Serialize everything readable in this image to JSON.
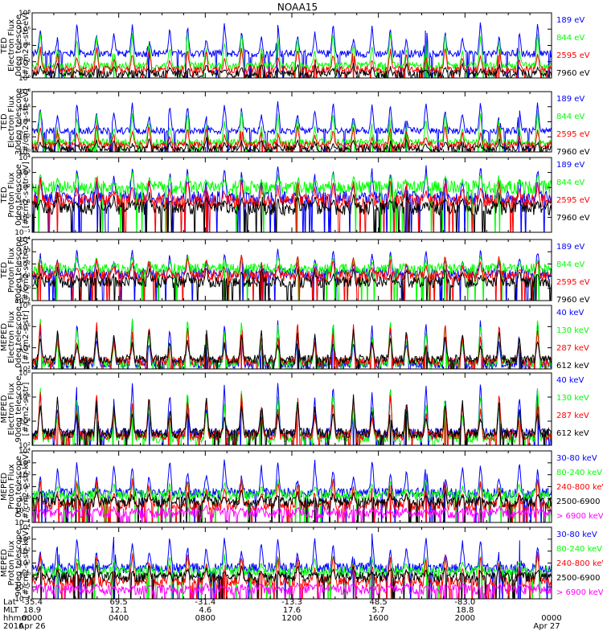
{
  "title": "NOAA15",
  "colors": {
    "black": "#000000",
    "red": "#ff0000",
    "green": "#00ff00",
    "blue": "#0000ff",
    "magenta": "#ff00ff"
  },
  "footer": {
    "row_labels": [
      "Lat",
      "MLT",
      "hhmm",
      "2016"
    ],
    "lat": [
      "-35.4",
      "69.5",
      "-31.4",
      "-13.3",
      "48.5",
      "-83.0"
    ],
    "mlt": [
      "18.9",
      "12.1",
      "4.6",
      "17.6",
      "5.7",
      "18.8"
    ],
    "hhmm": [
      "0000",
      "0400",
      "0800",
      "1200",
      "1600",
      "2000",
      "0000"
    ],
    "date_start": "Apr 26",
    "date_end": "Apr 27"
  },
  "chart_data": [
    {
      "type": "line",
      "ylabel": [
        "TED",
        "Electron Flux",
        "0deg telescope",
        "[#/cm2-s-str-eV]"
      ],
      "yticks": [
        "10⁸",
        "10⁶",
        "10⁴",
        "10²",
        "10⁰"
      ],
      "ylog": [
        0,
        8
      ],
      "x_hours": [
        0,
        24
      ],
      "series": [
        {
          "name": "7960 eV",
          "color": "#000000",
          "base": 0.5,
          "peak": 1.8
        },
        {
          "name": "2595 eV",
          "color": "#ff0000",
          "base": 1.0,
          "peak": 3.8
        },
        {
          "name": "844 eV",
          "color": "#00ff00",
          "base": 1.5,
          "peak": 5.8
        },
        {
          "name": "189 eV",
          "color": "#0000ff",
          "base": 3.0,
          "peak": 6.9
        }
      ]
    },
    {
      "type": "line",
      "ylabel": [
        "TED",
        "Electron Flux",
        "30deg telescope",
        "[#/cm2-s-str-eV]"
      ],
      "yticks": [
        "10⁸",
        "10⁶",
        "10⁴",
        "10²",
        "10⁰"
      ],
      "ylog": [
        0,
        8
      ],
      "x_hours": [
        0,
        24
      ],
      "series": [
        {
          "name": "7960 eV",
          "color": "#000000",
          "base": 0.4,
          "peak": 1.8
        },
        {
          "name": "2595 eV",
          "color": "#ff0000",
          "base": 0.9,
          "peak": 3.6
        },
        {
          "name": "844 eV",
          "color": "#00ff00",
          "base": 1.3,
          "peak": 5.6
        },
        {
          "name": "189 eV",
          "color": "#0000ff",
          "base": 2.8,
          "peak": 6.9
        }
      ]
    },
    {
      "type": "line",
      "ylabel": [
        "TED",
        "Proton Flux",
        "0deg telescope",
        "[#/cm2-s-str-eV]"
      ],
      "yticks": [
        "10⁴",
        "10³",
        "10²",
        "10¹",
        "10⁰",
        "10⁻¹"
      ],
      "ylog": [
        -1,
        4
      ],
      "x_hours": [
        0,
        24
      ],
      "series": [
        {
          "name": "7960 eV",
          "color": "#000000",
          "base": 0.6,
          "peak": 1.6
        },
        {
          "name": "2595 eV",
          "color": "#ff0000",
          "base": 1.1,
          "peak": 2.6
        },
        {
          "name": "844 eV",
          "color": "#00ff00",
          "base": 2.0,
          "peak": 3.0
        },
        {
          "name": "189 eV",
          "color": "#0000ff",
          "base": 1.3,
          "peak": 3.5
        }
      ]
    },
    {
      "type": "line",
      "ylabel": [
        "TED",
        "Proton Flux",
        "30deg telescope",
        "[#/cm2-s-str-eV]"
      ],
      "yticks": [
        "10⁴",
        "10³",
        "10²",
        "10¹",
        "10⁰",
        "10⁻¹"
      ],
      "ylog": [
        -1,
        4
      ],
      "x_hours": [
        0,
        24
      ],
      "series": [
        {
          "name": "7960 eV",
          "color": "#000000",
          "base": 0.5,
          "peak": 1.7
        },
        {
          "name": "2595 eV",
          "color": "#ff0000",
          "base": 1.0,
          "peak": 2.7
        },
        {
          "name": "844 eV",
          "color": "#00ff00",
          "base": 1.6,
          "peak": 2.6
        },
        {
          "name": "189 eV",
          "color": "#0000ff",
          "base": 1.2,
          "peak": 3.2
        }
      ]
    },
    {
      "type": "line",
      "ylabel": [
        "MEPED",
        "Electron Flux",
        "0deg telescope",
        "[#/cm2-s-str]"
      ],
      "yticks": [
        "10⁸",
        "10⁶",
        "10⁴",
        "10²"
      ],
      "ylog": [
        1.5,
        8
      ],
      "x_hours": [
        0,
        24
      ],
      "series": [
        {
          "name": "612 keV",
          "color": "#000000",
          "base": 2.5,
          "peak": 5.8
        },
        {
          "name": "287 keV",
          "color": "#ff0000",
          "base": 2.3,
          "peak": 6.3
        },
        {
          "name": "130 keV",
          "color": "#00ff00",
          "base": 2.1,
          "peak": 6.8
        },
        {
          "name": "40 keV",
          "color": "#0000ff",
          "base": 2.0,
          "peak": 6.6
        }
      ]
    },
    {
      "type": "line",
      "ylabel": [
        "MEPED",
        "Electron Flux",
        "90deg telescope",
        "[#/cm2-s-str]"
      ],
      "yticks": [
        "10⁸",
        "10⁶",
        "10⁴",
        "10²"
      ],
      "ylog": [
        1.5,
        8
      ],
      "x_hours": [
        0,
        24
      ],
      "series": [
        {
          "name": "612 keV",
          "color": "#000000",
          "base": 2.6,
          "peak": 6.0
        },
        {
          "name": "287 keV",
          "color": "#ff0000",
          "base": 2.4,
          "peak": 6.4
        },
        {
          "name": "130 keV",
          "color": "#00ff00",
          "base": 2.2,
          "peak": 6.7
        },
        {
          "name": "40 keV",
          "color": "#0000ff",
          "base": 2.6,
          "peak": 7.3
        }
      ]
    },
    {
      "type": "line",
      "ylabel": [
        "MEPED",
        "Proton Flux",
        "0deg telescope",
        "[#/cm2-s-str-keV]"
      ],
      "yticks": [
        "10⁴",
        "10³",
        "10²",
        "10¹",
        "10⁰",
        "10⁻¹",
        "10⁻²"
      ],
      "ylog": [
        -2.3,
        4
      ],
      "x_hours": [
        0,
        24
      ],
      "series": [
        {
          "name": "> 6900 keV",
          "color": "#ff00ff",
          "base": -1.5,
          "peak": -1.0
        },
        {
          "name": "2500-6900",
          "color": "#000000",
          "base": -0.5,
          "peak": 0.4
        },
        {
          "name": "240-800 keV",
          "color": "#ff0000",
          "base": -0.8,
          "peak": 1.7
        },
        {
          "name": "80-240 keV",
          "color": "#00ff00",
          "base": 0.1,
          "peak": 1.5
        },
        {
          "name": "30-80 keV",
          "color": "#0000ff",
          "base": 0.3,
          "peak": 3.3
        }
      ]
    },
    {
      "type": "line",
      "ylabel": [
        "MEPED",
        "Proton Flux",
        "90deg telescope",
        "[#/cm2-s-str-keV]"
      ],
      "yticks": [
        "10⁴",
        "10³",
        "10²",
        "10¹",
        "10⁰",
        "10⁻¹",
        "10⁻²"
      ],
      "ylog": [
        -2.3,
        4
      ],
      "x_hours": [
        0,
        24
      ],
      "series": [
        {
          "name": "> 6900 keV",
          "color": "#ff00ff",
          "base": -1.5,
          "peak": -1.0
        },
        {
          "name": "2500-6900",
          "color": "#000000",
          "base": -0.4,
          "peak": 0.6
        },
        {
          "name": "240-800 keV",
          "color": "#ff0000",
          "base": -0.8,
          "peak": 1.8
        },
        {
          "name": "80-240 keV",
          "color": "#00ff00",
          "base": 0.1,
          "peak": 1.6
        },
        {
          "name": "30-80 keV",
          "color": "#0000ff",
          "base": 0.4,
          "peak": 3.4
        }
      ]
    }
  ]
}
